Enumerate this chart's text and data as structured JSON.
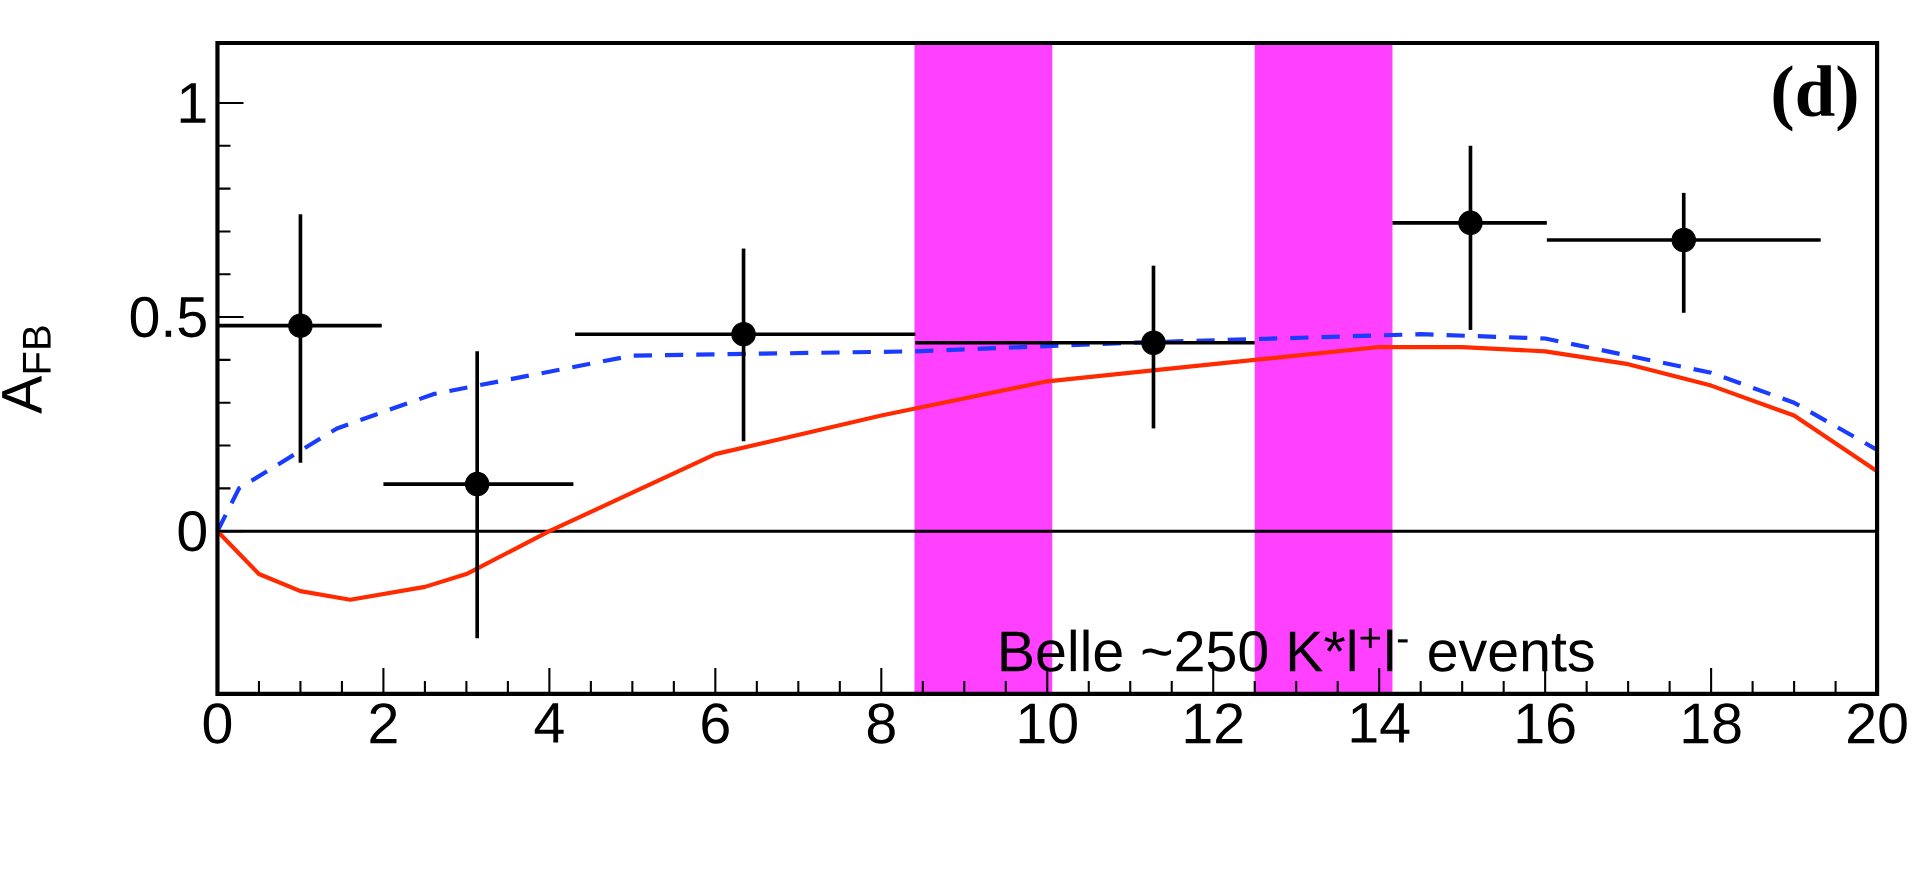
{
  "chart_data": {
    "type": "scatter",
    "ylabel": "A$_{FB}$",
    "annotations": [
      "Belle ~250 K*l$^{+}$l$^{-}$ events",
      "(d)"
    ],
    "xlim": [
      0,
      20
    ],
    "ylim": [
      -0.38,
      1.14
    ],
    "xticks": [
      0,
      2,
      4,
      6,
      8,
      10,
      12,
      14,
      16,
      18,
      20
    ],
    "yticks": [
      0,
      0.5,
      1
    ],
    "ref_lines": [
      {
        "axis": "y",
        "value": 0,
        "color": "#000000"
      }
    ],
    "bands": [
      {
        "axis": "x",
        "from": 8.4,
        "to": 10.06,
        "color": "#ff40ff"
      },
      {
        "axis": "x",
        "from": 12.5,
        "to": 14.16,
        "color": "#ff40ff"
      }
    ],
    "series": [
      {
        "type": "line",
        "color": "#1a3cff",
        "line_style": "dashed",
        "marker": "none",
        "x": [
          0,
          0.26,
          1.44,
          2.6,
          5,
          8.4,
          11,
          14.5,
          16,
          18,
          19,
          20
        ],
        "values": [
          0,
          0.1,
          0.24,
          0.32,
          0.41,
          0.42,
          0.44,
          0.46,
          0.45,
          0.37,
          0.3,
          0.19
        ]
      },
      {
        "type": "line",
        "color": "#ff2a00",
        "line_style": "solid",
        "marker": "none",
        "x": [
          0,
          0.5,
          1,
          1.6,
          2.5,
          3,
          4,
          5,
          6,
          8,
          10,
          12,
          14,
          15,
          16,
          17,
          18,
          19,
          20
        ],
        "values": [
          0,
          -0.1,
          -0.14,
          -0.16,
          -0.13,
          -0.1,
          0,
          0.09,
          0.18,
          0.27,
          0.35,
          0.39,
          0.43,
          0.43,
          0.42,
          0.39,
          0.34,
          0.27,
          0.14
        ]
      },
      {
        "type": "scatter",
        "color": "#000000",
        "marker": "circle",
        "x": [
          1.0,
          3.13,
          6.34,
          11.28,
          15.1,
          17.67
        ],
        "values": [
          0.48,
          0.11,
          0.46,
          0.44,
          0.72,
          0.68
        ],
        "errors": [
          [
            0.16,
            0.74
          ],
          [
            -0.25,
            0.42
          ],
          [
            0.21,
            0.66
          ],
          [
            0.24,
            0.62
          ],
          [
            0.47,
            0.9
          ],
          [
            0.51,
            0.79
          ]
        ],
        "xerrors": [
          [
            0,
            1.98
          ],
          [
            2.0,
            4.29
          ],
          [
            4.31,
            8.41
          ],
          [
            8.41,
            12.5
          ],
          [
            14.16,
            16.02
          ],
          [
            16.02,
            19.32
          ]
        ]
      }
    ]
  }
}
